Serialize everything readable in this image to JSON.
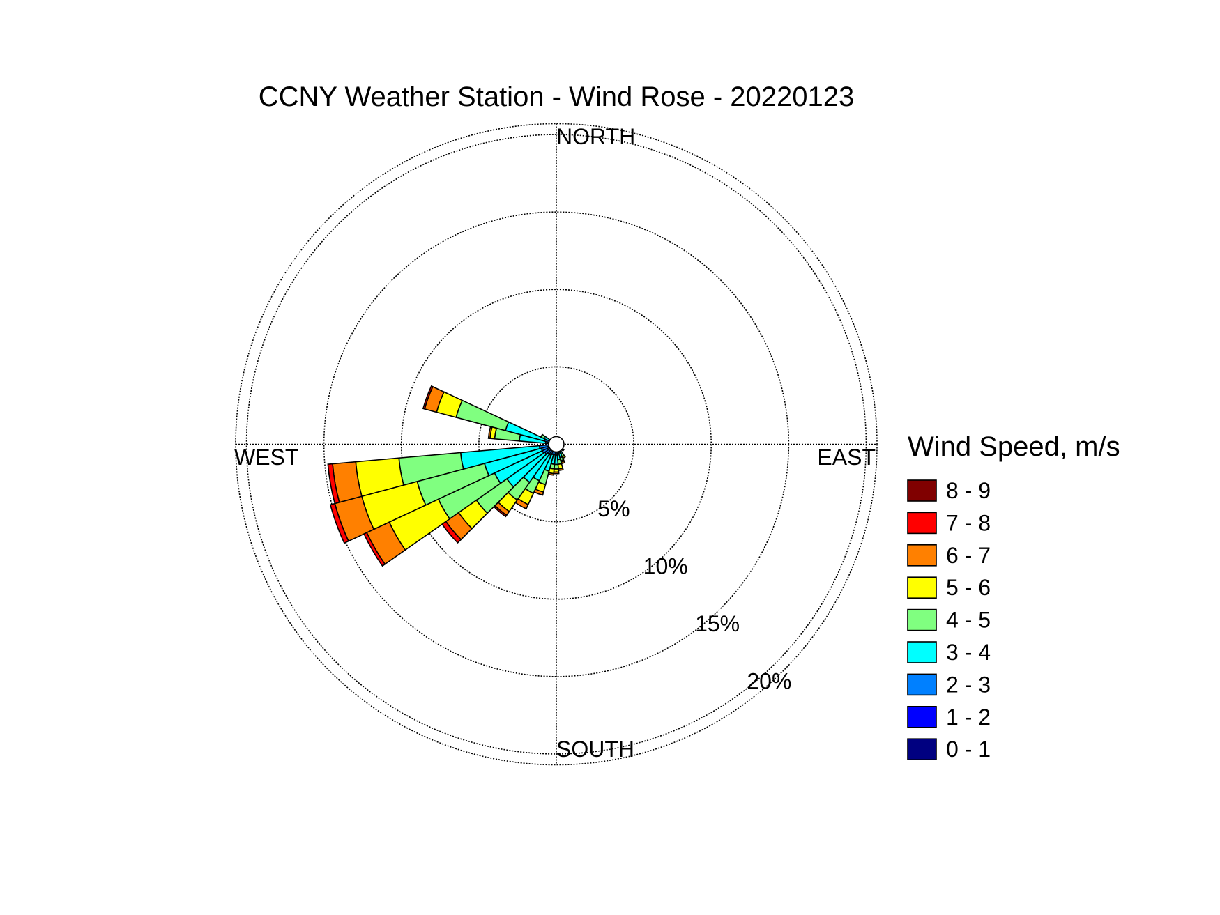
{
  "chart_data": {
    "type": "wind-rose",
    "title": "CCNY Weather Station - Wind Rose - 20220123",
    "directions": {
      "north": "NORTH",
      "south": "SOUTH",
      "east": "EAST",
      "west": "WEST"
    },
    "radial_unit": "%",
    "radial_ticks": [
      {
        "value": 5,
        "label": "5%"
      },
      {
        "value": 10,
        "label": "10%"
      },
      {
        "value": 15,
        "label": "15%"
      },
      {
        "value": 20,
        "label": "20%"
      }
    ],
    "rmax": 20.7,
    "legend": {
      "title": "Wind Speed, m/s",
      "bins": [
        {
          "label": "8 - 9",
          "color": "#800000"
        },
        {
          "label": "7 - 8",
          "color": "#ff0000"
        },
        {
          "label": "6 - 7",
          "color": "#ff8000"
        },
        {
          "label": "5 - 6",
          "color": "#ffff00"
        },
        {
          "label": "4 - 5",
          "color": "#80ff80"
        },
        {
          "label": "3 - 4",
          "color": "#00ffff"
        },
        {
          "label": "2 - 3",
          "color": "#0080ff"
        },
        {
          "label": "1 - 2",
          "color": "#0000ff"
        },
        {
          "label": "0 - 1",
          "color": "#000080"
        }
      ]
    },
    "bin_colors_low_to_high": [
      "#000080",
      "#0000ff",
      "#0080ff",
      "#00ffff",
      "#80ff80",
      "#ffff00",
      "#ff8000",
      "#ff0000",
      "#800000"
    ],
    "sector_width_deg": 10,
    "sectors": [
      {
        "dir": 290,
        "freqs": [
          0.1,
          0.2,
          0.5,
          2.6,
          3.3,
          1.3,
          0.8,
          0.1,
          0
        ]
      },
      {
        "dir": 280,
        "freqs": [
          0.1,
          0.2,
          0.4,
          1.7,
          1.6,
          0.3,
          0.1,
          0,
          0
        ]
      },
      {
        "dir": 260,
        "freqs": [
          0.1,
          0.2,
          0.8,
          5.1,
          4.0,
          2.8,
          1.5,
          0.3,
          0
        ]
      },
      {
        "dir": 250,
        "freqs": [
          0.1,
          0.2,
          0.7,
          3.8,
          4.5,
          3.7,
          1.8,
          0.3,
          0
        ]
      },
      {
        "dir": 240,
        "freqs": [
          0.1,
          0.2,
          0.7,
          3.4,
          4.0,
          3.5,
          1.6,
          0.2,
          0
        ]
      },
      {
        "dir": 230,
        "freqs": [
          0.1,
          0.2,
          0.6,
          3.0,
          2.4,
          1.4,
          1.0,
          0.3,
          0
        ]
      },
      {
        "dir": 220,
        "freqs": [
          0.1,
          0.2,
          0.5,
          2.2,
          1.4,
          0.9,
          0.3,
          0.1,
          0
        ]
      },
      {
        "dir": 210,
        "freqs": [
          0.1,
          0.2,
          0.5,
          1.8,
          0.9,
          0.8,
          0.3,
          0,
          0
        ]
      },
      {
        "dir": 200,
        "freqs": [
          0.1,
          0.2,
          0.4,
          1.1,
          0.9,
          0.5,
          0.2,
          0,
          0
        ]
      },
      {
        "dir": 190,
        "freqs": [
          0.1,
          0.2,
          0.4,
          0.6,
          0.3,
          0.3,
          0.1,
          0,
          0
        ]
      },
      {
        "dir": 180,
        "freqs": [
          0.1,
          0.2,
          0.4,
          0.6,
          0.3,
          0.2,
          0.1,
          0,
          0
        ]
      },
      {
        "dir": 170,
        "freqs": [
          0.1,
          0.2,
          0.3,
          0.4,
          0.3,
          0.3,
          0.1,
          0,
          0
        ]
      },
      {
        "dir": 160,
        "freqs": [
          0.1,
          0.2,
          0.3,
          0.3,
          0.2,
          0.1,
          0.1,
          0,
          0
        ]
      },
      {
        "dir": 150,
        "freqs": [
          0.1,
          0.2,
          0.2,
          0.2,
          0.2,
          0.1,
          0,
          0,
          0
        ]
      },
      {
        "dir": 130,
        "freqs": [
          0.1,
          0.1,
          0.2,
          0.1,
          0.1,
          0,
          0,
          0,
          0
        ]
      },
      {
        "dir": 110,
        "freqs": [
          0.1,
          0.1,
          0.1,
          0.1,
          0,
          0,
          0,
          0,
          0
        ]
      },
      {
        "dir": 90,
        "freqs": [
          0.1,
          0.1,
          0.1,
          0,
          0,
          0,
          0,
          0,
          0
        ]
      },
      {
        "dir": 70,
        "freqs": [
          0.1,
          0.1,
          0,
          0,
          0,
          0,
          0,
          0,
          0
        ]
      },
      {
        "dir": 30,
        "freqs": [
          0.1,
          0.1,
          0,
          0,
          0,
          0,
          0,
          0,
          0
        ]
      },
      {
        "dir": 340,
        "freqs": [
          0.1,
          0.1,
          0,
          0,
          0,
          0,
          0,
          0,
          0
        ]
      },
      {
        "dir": 320,
        "freqs": [
          0.1,
          0.1,
          0.1,
          0,
          0,
          0,
          0,
          0,
          0
        ]
      },
      {
        "dir": 300,
        "freqs": [
          0.1,
          0.2,
          0.2,
          0.4,
          0.2,
          0,
          0,
          0,
          0
        ]
      }
    ],
    "grid": true,
    "legend_position": "right"
  }
}
